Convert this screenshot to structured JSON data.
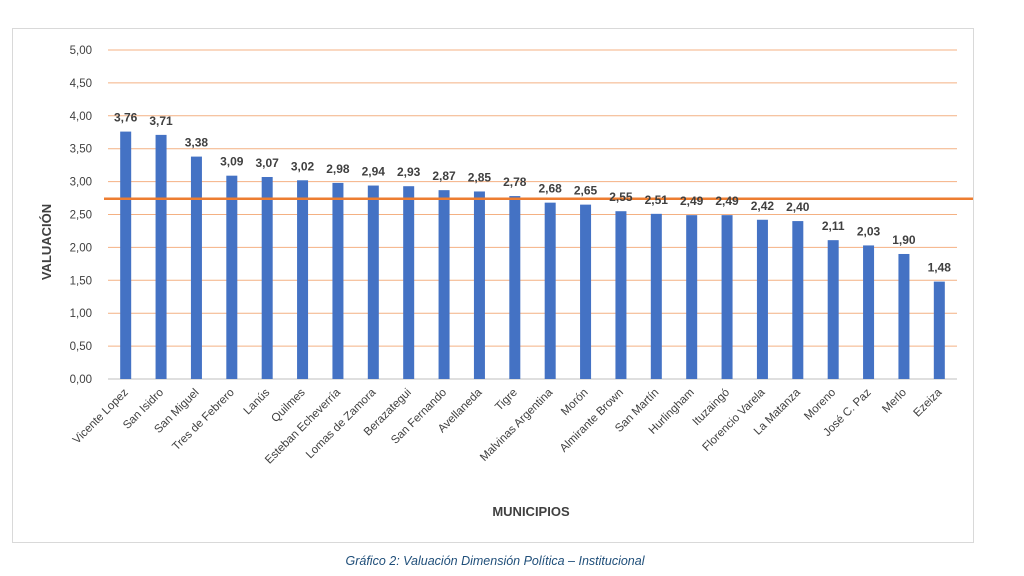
{
  "chart_data": {
    "type": "bar",
    "title": "",
    "xlabel": "MUNICIPIOS",
    "ylabel": "VALUACIÓN",
    "ylim": [
      0,
      5
    ],
    "yticks": [
      "0,00",
      "0,50",
      "1,00",
      "1,50",
      "2,00",
      "2,50",
      "3,00",
      "3,50",
      "4,00",
      "4,50",
      "5,00"
    ],
    "ytick_values": [
      0,
      0.5,
      1,
      1.5,
      2,
      2.5,
      3,
      3.5,
      4,
      4.5,
      5
    ],
    "grid": true,
    "categories": [
      "Vicente Lopez",
      "San Isidro",
      "San Miguel",
      "Tres de Febrero",
      "Lanús",
      "Quilmes",
      "Esteban Echeverría",
      "Lomas de Zamora",
      "Berazategui",
      "San Fernando",
      "Avellaneda",
      "Tigre",
      "Malvinas Argentina",
      "Morón",
      "Almirante Brown",
      "San Martín",
      "Hurlingham",
      "Ituzaingó",
      "Florencio Varela",
      "La Matanza",
      "Moreno",
      "José C. Paz",
      "Merlo",
      "Ezeiza"
    ],
    "values": [
      3.76,
      3.71,
      3.38,
      3.09,
      3.07,
      3.02,
      2.98,
      2.94,
      2.93,
      2.87,
      2.85,
      2.78,
      2.68,
      2.65,
      2.55,
      2.51,
      2.49,
      2.49,
      2.42,
      2.4,
      2.11,
      2.03,
      1.9,
      1.48
    ],
    "value_labels": [
      "3,76",
      "3,71",
      "3,38",
      "3,09",
      "3,07",
      "3,02",
      "2,98",
      "2,94",
      "2,93",
      "2,87",
      "2,85",
      "2,78",
      "2,68",
      "2,65",
      "2,55",
      "2,51",
      "2,49",
      "2,49",
      "2,42",
      "2,40",
      "2,11",
      "2,03",
      "1,90",
      "1,48"
    ],
    "reference_line": 2.74,
    "colors": {
      "bar": "#4472c4",
      "grid": "#f4b183",
      "reference_line": "#ed7d31",
      "text": "#404040"
    }
  },
  "caption": "Gráfico 2: Valuación Dimensión Política – Institucional"
}
